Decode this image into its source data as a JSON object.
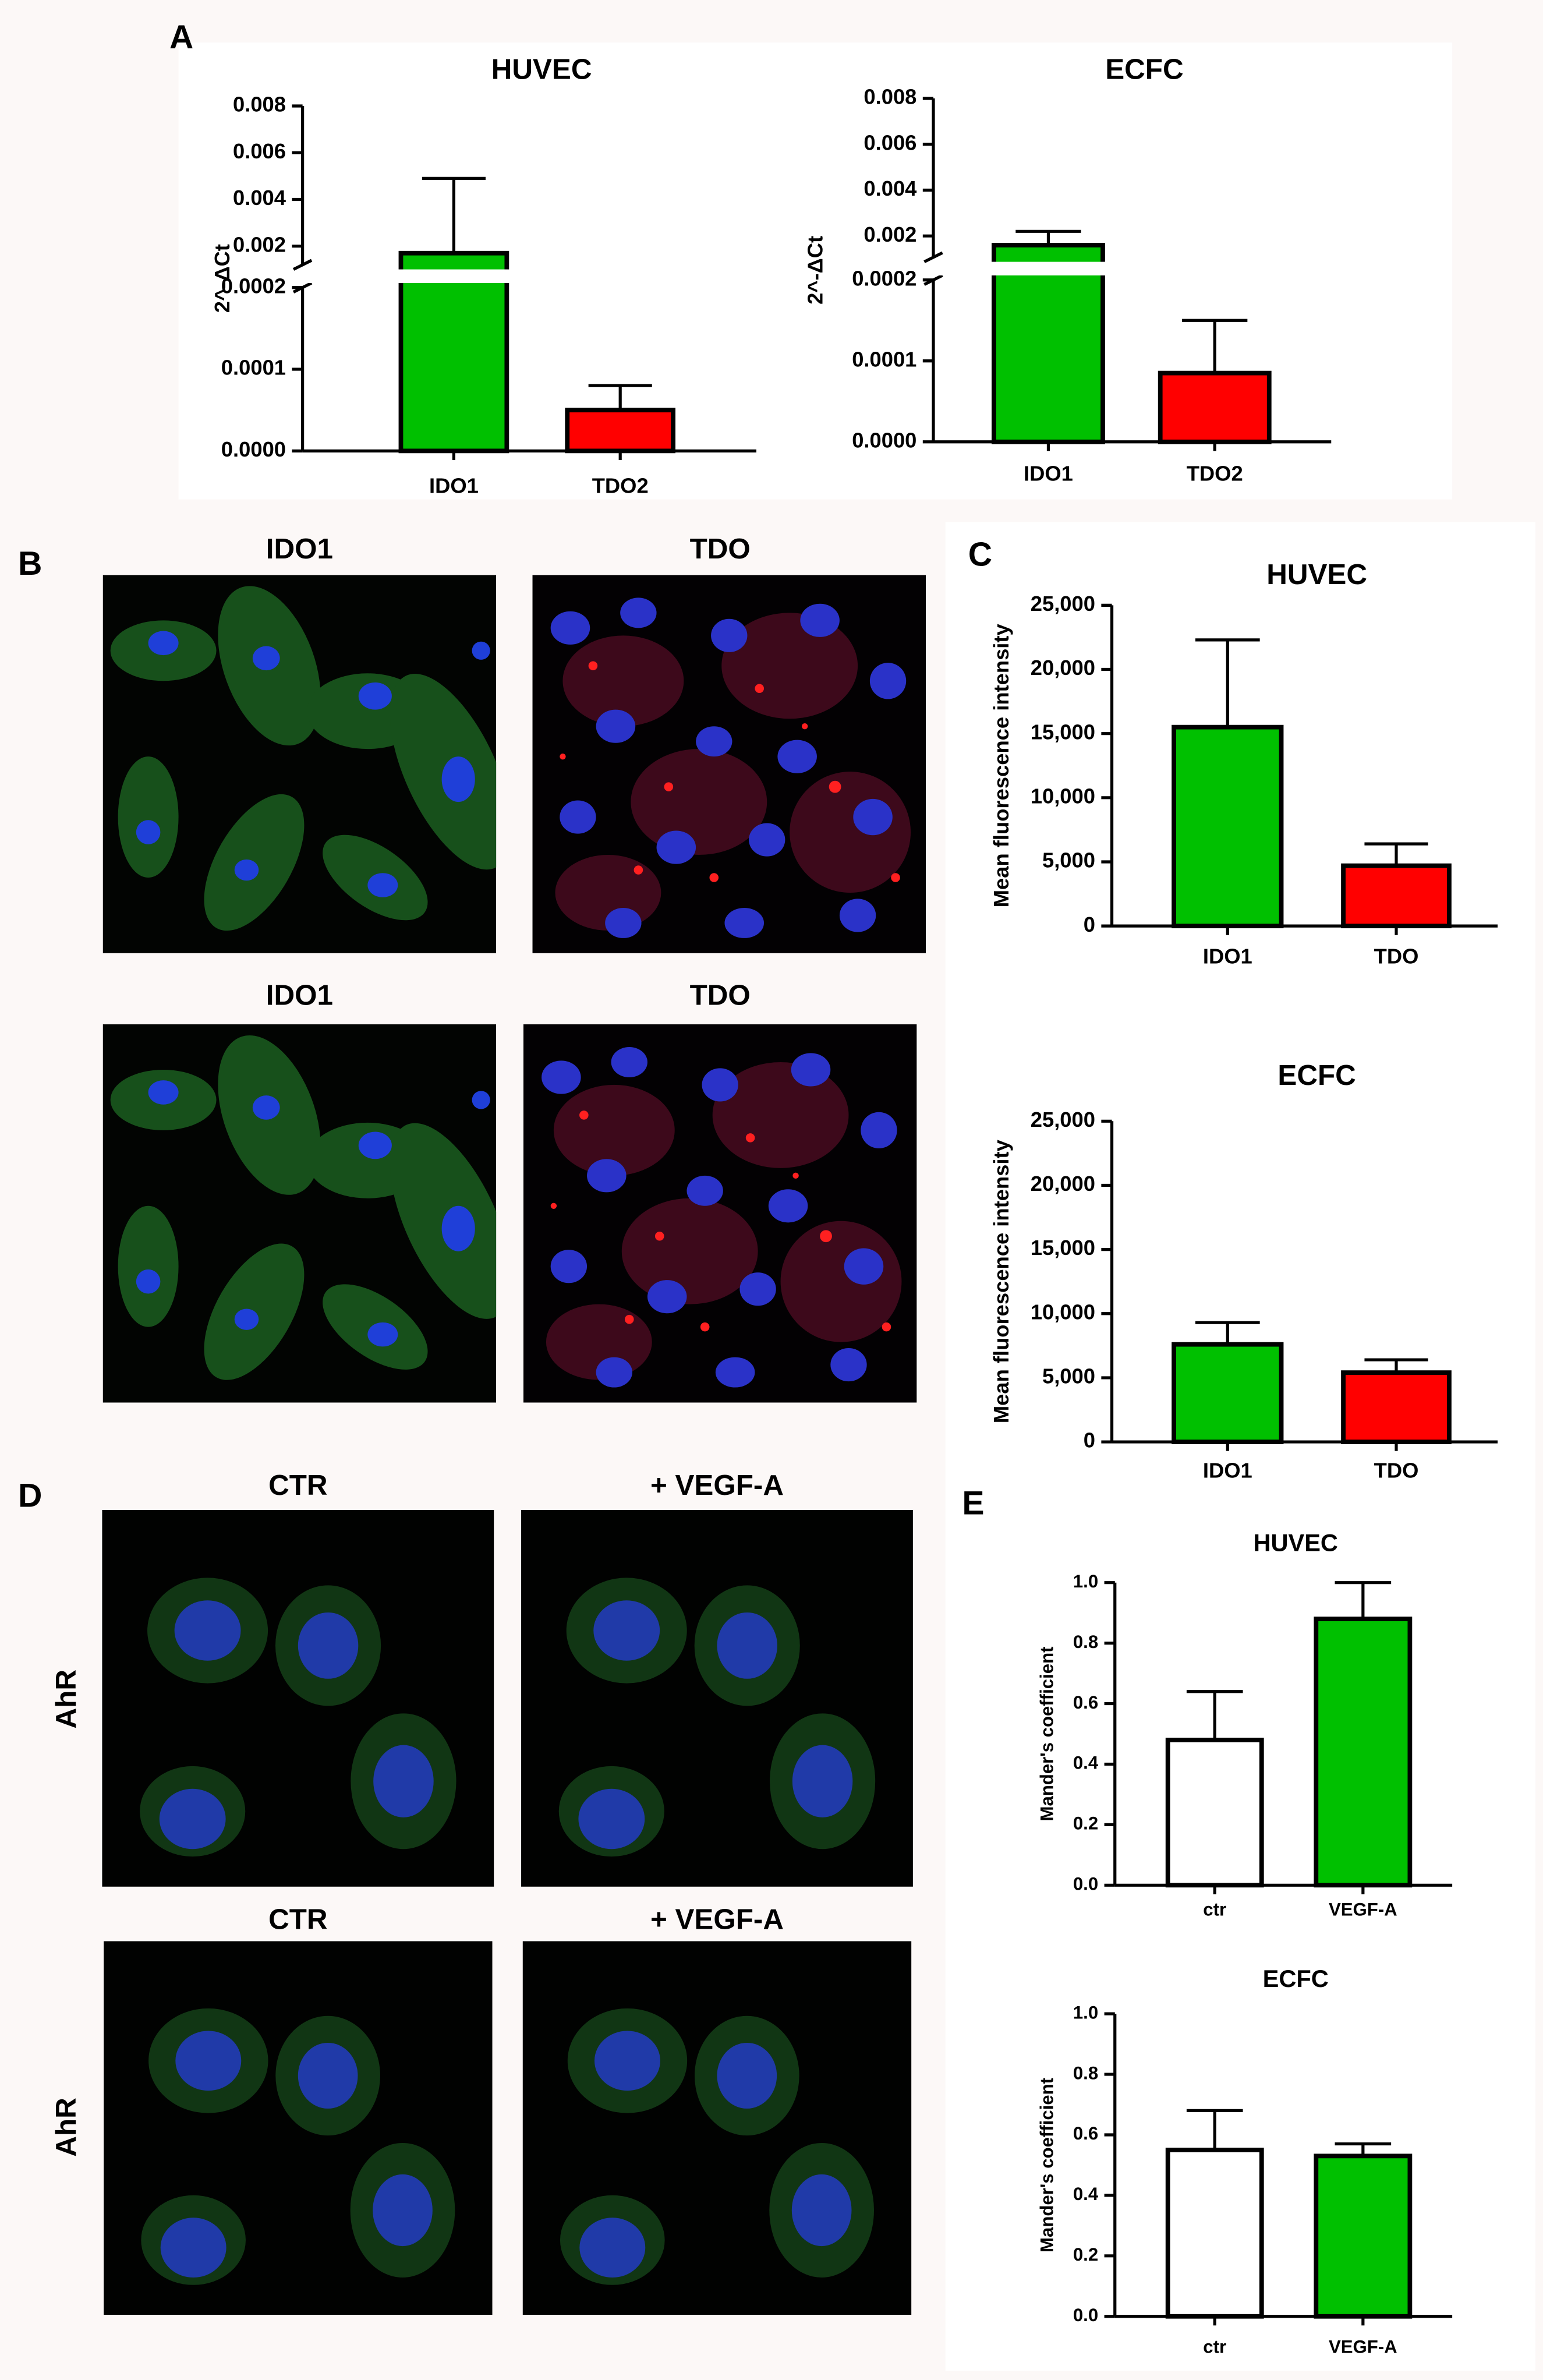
{
  "panel_labels": [
    "A",
    "B",
    "C",
    "D",
    "E"
  ],
  "image_titles": [
    "IDO1",
    "TDO",
    "IDO1",
    "TDO",
    "CTR",
    "+ VEGF-A",
    "CTR",
    "+ VEGF-A"
  ],
  "row_labels": [
    "AhR",
    "AhR"
  ],
  "chart_data": [
    {
      "type": "bar",
      "title": "HUVEC",
      "ylabel": "2^-ΔCt",
      "categories": [
        "IDO1",
        "TDO2"
      ],
      "values": [
        0.0017,
        5e-05
      ],
      "errors": [
        0.0032,
        3e-05
      ],
      "colors": [
        "#00c000",
        "#ff0000"
      ],
      "y_segments": [
        {
          "ylim": [
            0,
            0.0002
          ],
          "yticks": [
            {
              "value": 0,
              "label": "0.0000"
            },
            0.0001,
            0.0002
          ]
        },
        {
          "ylim": [
            0.0012,
            0.008
          ],
          "yticks": [
            0.002,
            0.004,
            0.006,
            0.008
          ]
        }
      ]
    },
    {
      "type": "bar",
      "title": "ECFC",
      "ylabel": "2^-ΔCt",
      "categories": [
        "IDO1",
        "TDO2"
      ],
      "values": [
        0.0016,
        8.5e-05
      ],
      "errors": [
        0.0006,
        6.5e-05
      ],
      "colors": [
        "#00c000",
        "#ff0000"
      ],
      "y_segments": [
        {
          "ylim": [
            0,
            0.0002
          ],
          "yticks": [
            {
              "value": 0,
              "label": "0.0000"
            },
            0.0001,
            0.0002
          ]
        },
        {
          "ylim": [
            0.00107,
            0.008
          ],
          "yticks": [
            0.002,
            0.004,
            0.006,
            0.008
          ]
        }
      ]
    },
    {
      "type": "bar",
      "title": "HUVEC",
      "ylabel": "Mean fluorescence intensity",
      "categories": [
        "IDO1",
        "TDO"
      ],
      "values": [
        15500,
        4700
      ],
      "errors": [
        6800,
        1700
      ],
      "colors": [
        "#00c000",
        "#ff0000"
      ],
      "ylim": [
        0,
        25000
      ],
      "yticks": [
        0,
        {
          "value": 5000,
          "label": "5,000"
        },
        {
          "value": 10000,
          "label": "10,000"
        },
        {
          "value": 15000,
          "label": "15,000"
        },
        {
          "value": 20000,
          "label": "20,000"
        },
        {
          "value": 25000,
          "label": "25,000"
        }
      ]
    },
    {
      "type": "bar",
      "title": "ECFC",
      "ylabel": "Mean fluorescence intensity",
      "categories": [
        "IDO1",
        "TDO"
      ],
      "values": [
        7600,
        5400
      ],
      "errors": [
        1700,
        1000
      ],
      "colors": [
        "#00c000",
        "#ff0000"
      ],
      "ylim": [
        0,
        25000
      ],
      "yticks": [
        0,
        {
          "value": 5000,
          "label": "5,000"
        },
        {
          "value": 10000,
          "label": "10,000"
        },
        {
          "value": 15000,
          "label": "15,000"
        },
        {
          "value": 20000,
          "label": "20,000"
        },
        {
          "value": 25000,
          "label": "25,000"
        }
      ]
    },
    {
      "type": "bar",
      "title": "HUVEC",
      "ylabel": "Mander's coefficient",
      "categories": [
        "ctr",
        "VEGF-A"
      ],
      "values": [
        0.48,
        0.88
      ],
      "errors": [
        0.16,
        0.12
      ],
      "colors": [
        "#ffffff",
        "#00c000"
      ],
      "ylim": [
        0,
        1
      ],
      "yticks": [
        {
          "value": 0,
          "label": "0.0"
        },
        0.2,
        0.4,
        0.6,
        0.8,
        {
          "value": 1,
          "label": "1.0"
        }
      ]
    },
    {
      "type": "bar",
      "title": "ECFC",
      "ylabel": "Mander's coefficient",
      "categories": [
        "ctr",
        "VEGF-A"
      ],
      "values": [
        0.55,
        0.53
      ],
      "errors": [
        0.13,
        0.04
      ],
      "colors": [
        "#ffffff",
        "#00c000"
      ],
      "ylim": [
        0,
        1
      ],
      "yticks": [
        {
          "value": 0,
          "label": "0.0"
        },
        0.2,
        0.4,
        0.6,
        0.8,
        {
          "value": 1,
          "label": "1.0"
        }
      ]
    }
  ]
}
